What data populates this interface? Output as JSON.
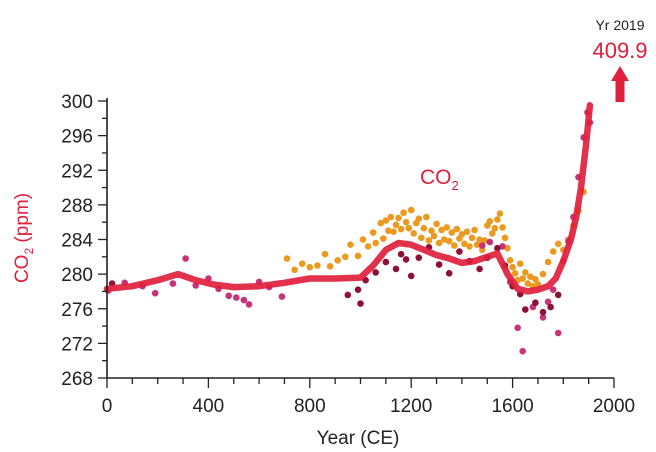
{
  "colors": {
    "accent": "#e0203c",
    "orange_points": "#eb9a1f",
    "magenta_points": "#c8327a",
    "maroon_points": "#8e1036",
    "axis": "#222222"
  },
  "chart_data": {
    "type": "scatter",
    "xlabel": "Year (CE)",
    "ylabel_main": "CO",
    "ylabel_sub": "2",
    "ylabel_unit": " (ppm)",
    "series_label_main": "CO",
    "series_label_sub": "2",
    "xlim": [
      0,
      2000
    ],
    "ylim": [
      268,
      300
    ],
    "xticks": [
      0,
      400,
      800,
      1200,
      1600,
      2000
    ],
    "yticks": [
      268,
      272,
      276,
      280,
      284,
      288,
      292,
      296,
      300
    ],
    "grid": false,
    "callout": {
      "year_label": "Yr 2019",
      "value_label": "409.9"
    },
    "smoothed_line": {
      "x": [
        0,
        100,
        200,
        280,
        350,
        420,
        500,
        600,
        700,
        800,
        900,
        1000,
        1050,
        1100,
        1150,
        1200,
        1250,
        1300,
        1350,
        1400,
        1450,
        1500,
        1540,
        1580,
        1620,
        1660,
        1700,
        1740,
        1770,
        1800,
        1830,
        1850,
        1870,
        1890,
        1905
      ],
      "y": [
        278.3,
        278.6,
        279.3,
        280.0,
        279.3,
        278.8,
        278.5,
        278.6,
        279.0,
        279.5,
        279.5,
        279.6,
        281.0,
        282.8,
        283.6,
        283.4,
        282.8,
        282.2,
        281.8,
        281.3,
        281.5,
        282.0,
        282.4,
        280.0,
        278.3,
        278.0,
        278.2,
        278.6,
        279.5,
        281.5,
        284.0,
        286.5,
        290.0,
        295.0,
        299.5
      ]
    },
    "points_orange": {
      "x": [
        710,
        740,
        770,
        800,
        830,
        860,
        880,
        910,
        940,
        960,
        990,
        1010,
        1030,
        1050,
        1060,
        1080,
        1090,
        1100,
        1110,
        1120,
        1130,
        1140,
        1150,
        1160,
        1170,
        1180,
        1190,
        1200,
        1210,
        1220,
        1230,
        1240,
        1250,
        1260,
        1270,
        1280,
        1290,
        1300,
        1310,
        1320,
        1330,
        1340,
        1350,
        1360,
        1370,
        1380,
        1390,
        1400,
        1410,
        1420,
        1430,
        1440,
        1450,
        1460,
        1470,
        1480,
        1490,
        1500,
        1510,
        1520,
        1530,
        1540,
        1550,
        1560,
        1570,
        1580,
        1590,
        1600,
        1610,
        1620,
        1630,
        1640,
        1650,
        1660,
        1670,
        1680,
        1690,
        1700,
        1720,
        1740,
        1760,
        1780,
        1800,
        1820,
        1840,
        1860,
        1880
      ],
      "y": [
        281.8,
        280.5,
        281.2,
        280.8,
        281.0,
        282.3,
        280.9,
        281.6,
        282.0,
        283.4,
        282.1,
        284.0,
        283.2,
        284.8,
        283.6,
        285.9,
        284.1,
        286.2,
        285.0,
        286.6,
        284.9,
        285.7,
        286.5,
        285.2,
        287.1,
        286.0,
        285.3,
        287.4,
        284.7,
        285.9,
        286.4,
        284.2,
        285.3,
        286.6,
        283.9,
        285.0,
        284.4,
        285.8,
        283.6,
        285.1,
        284.0,
        285.4,
        283.8,
        284.8,
        283.3,
        285.2,
        284.1,
        284.6,
        283.5,
        284.9,
        283.2,
        284.2,
        285.1,
        283.4,
        284.0,
        282.8,
        283.9,
        285.6,
        286.1,
        284.7,
        285.3,
        286.3,
        287.0,
        285.4,
        284.2,
        283.0,
        281.6,
        280.8,
        280.1,
        279.3,
        281.2,
        279.5,
        280.2,
        278.9,
        279.7,
        278.6,
        279.4,
        278.8,
        280.0,
        281.4,
        282.6,
        283.5,
        282.8,
        284.0,
        285.6,
        287.3,
        289.5
      ]
    },
    "points_magenta": {
      "x": [
        5,
        70,
        140,
        190,
        260,
        310,
        350,
        400,
        440,
        480,
        510,
        540,
        560,
        600,
        640,
        690,
        1480,
        1510,
        1560,
        1590,
        1620,
        1640,
        1680,
        1720,
        1740,
        1760,
        1780,
        1800,
        1820,
        1840,
        1860,
        1880,
        1895,
        1905
      ],
      "y": [
        278.1,
        279.0,
        278.6,
        277.8,
        278.9,
        281.8,
        278.7,
        279.5,
        278.3,
        277.5,
        277.3,
        277.0,
        276.5,
        279.1,
        278.5,
        277.4,
        283.3,
        283.7,
        283.2,
        279.1,
        273.8,
        271.1,
        276.2,
        275.0,
        276.8,
        278.2,
        273.2,
        281.5,
        283.8,
        286.6,
        291.2,
        295.8,
        298.7,
        297.5
      ]
    },
    "points_maroon": {
      "x": [
        20,
        950,
        990,
        1000,
        1020,
        1060,
        1100,
        1140,
        1160,
        1180,
        1200,
        1230,
        1270,
        1310,
        1350,
        1390,
        1430,
        1470,
        1500,
        1540,
        1570,
        1600,
        1630,
        1650,
        1690,
        1720,
        1750,
        1780
      ],
      "y": [
        278.9,
        277.6,
        278.2,
        276.6,
        279.3,
        280.2,
        281.4,
        280.6,
        282.3,
        281.7,
        279.8,
        281.9,
        283.1,
        281.1,
        280.1,
        282.6,
        281.5,
        280.6,
        281.9,
        283.0,
        281.0,
        278.6,
        277.7,
        275.9,
        276.7,
        275.6,
        276.2,
        277.6
      ]
    }
  }
}
